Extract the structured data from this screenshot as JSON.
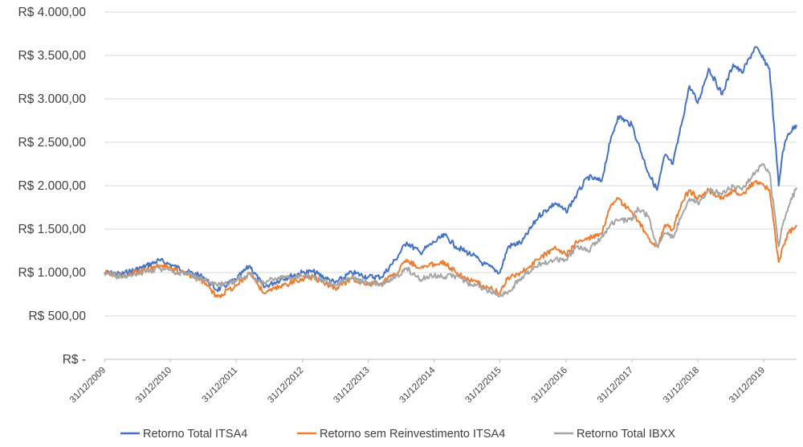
{
  "chart_data": {
    "type": "line",
    "title": "",
    "xlabel": "",
    "ylabel": "",
    "ylim": [
      0,
      4000
    ],
    "grid": true,
    "legend_position": "bottom",
    "y_ticks": [
      {
        "value": 0,
        "label": "R$ -"
      },
      {
        "value": 500,
        "label": "R$ 500,00"
      },
      {
        "value": 1000,
        "label": "R$ 1.000,00"
      },
      {
        "value": 1500,
        "label": "R$ 1.500,00"
      },
      {
        "value": 2000,
        "label": "R$ 2.000,00"
      },
      {
        "value": 2500,
        "label": "R$ 2.500,00"
      },
      {
        "value": 3000,
        "label": "R$ 3.000,00"
      },
      {
        "value": 3500,
        "label": "R$ 3.500,00"
      },
      {
        "value": 4000,
        "label": "R$ 4.000,00"
      }
    ],
    "x_range": [
      "2009-12-31",
      "2020-06-30"
    ],
    "x_ticks": [
      {
        "date": "2009-12-31",
        "label": "31/12/2009"
      },
      {
        "date": "2010-12-31",
        "label": "31/12/2010"
      },
      {
        "date": "2011-12-31",
        "label": "31/12/2011"
      },
      {
        "date": "2012-12-31",
        "label": "31/12/2012"
      },
      {
        "date": "2013-12-31",
        "label": "31/12/2013"
      },
      {
        "date": "2014-12-31",
        "label": "31/12/2014"
      },
      {
        "date": "2015-12-31",
        "label": "31/12/2015"
      },
      {
        "date": "2016-12-31",
        "label": "31/12/2016"
      },
      {
        "date": "2017-12-31",
        "label": "31/12/2017"
      },
      {
        "date": "2018-12-31",
        "label": "31/12/2018"
      },
      {
        "date": "2019-12-31",
        "label": "31/12/2019"
      }
    ],
    "series": [
      {
        "name": "Retorno Total ITSA4",
        "color": "#4472c4",
        "points": [
          [
            "2009-12-31",
            1000
          ],
          [
            "2010-04-01",
            980
          ],
          [
            "2010-08-01",
            1060
          ],
          [
            "2010-11-01",
            1140
          ],
          [
            "2011-01-15",
            1080
          ],
          [
            "2011-04-01",
            1010
          ],
          [
            "2011-07-01",
            950
          ],
          [
            "2011-09-15",
            800
          ],
          [
            "2011-12-31",
            920
          ],
          [
            "2012-03-15",
            1080
          ],
          [
            "2012-06-01",
            830
          ],
          [
            "2012-09-01",
            920
          ],
          [
            "2012-12-31",
            1000
          ],
          [
            "2013-03-01",
            1010
          ],
          [
            "2013-07-01",
            880
          ],
          [
            "2013-10-01",
            1000
          ],
          [
            "2013-12-31",
            950
          ],
          [
            "2014-03-15",
            950
          ],
          [
            "2014-06-01",
            1150
          ],
          [
            "2014-08-01",
            1350
          ],
          [
            "2014-10-15",
            1230
          ],
          [
            "2014-12-31",
            1350
          ],
          [
            "2015-03-01",
            1430
          ],
          [
            "2015-05-01",
            1300
          ],
          [
            "2015-08-01",
            1200
          ],
          [
            "2015-10-01",
            1100
          ],
          [
            "2015-12-31",
            1000
          ],
          [
            "2016-02-15",
            1300
          ],
          [
            "2016-05-01",
            1350
          ],
          [
            "2016-08-01",
            1650
          ],
          [
            "2016-11-01",
            1800
          ],
          [
            "2016-12-31",
            1700
          ],
          [
            "2017-03-01",
            1900
          ],
          [
            "2017-05-01",
            2100
          ],
          [
            "2017-07-15",
            2050
          ],
          [
            "2017-09-01",
            2500
          ],
          [
            "2017-10-15",
            2800
          ],
          [
            "2017-12-31",
            2700
          ],
          [
            "2018-02-01",
            2500
          ],
          [
            "2018-04-01",
            2150
          ],
          [
            "2018-05-20",
            1950
          ],
          [
            "2018-07-01",
            2350
          ],
          [
            "2018-08-15",
            2250
          ],
          [
            "2018-10-01",
            2700
          ],
          [
            "2018-11-15",
            3150
          ],
          [
            "2018-12-31",
            2950
          ],
          [
            "2019-03-01",
            3350
          ],
          [
            "2019-05-15",
            3050
          ],
          [
            "2019-07-15",
            3400
          ],
          [
            "2019-09-01",
            3300
          ],
          [
            "2019-11-15",
            3600
          ],
          [
            "2019-12-31",
            3450
          ],
          [
            "2020-02-01",
            3350
          ],
          [
            "2020-03-23",
            2000
          ],
          [
            "2020-04-15",
            2400
          ],
          [
            "2020-05-15",
            2600
          ],
          [
            "2020-06-30",
            2700
          ]
        ]
      },
      {
        "name": "Retorno sem Reinvestimento ITSA4",
        "color": "#ed7d31",
        "points": [
          [
            "2009-12-31",
            1000
          ],
          [
            "2010-04-01",
            960
          ],
          [
            "2010-08-01",
            1020
          ],
          [
            "2010-11-01",
            1080
          ],
          [
            "2011-01-15",
            1040
          ],
          [
            "2011-04-01",
            980
          ],
          [
            "2011-07-01",
            900
          ],
          [
            "2011-09-15",
            720
          ],
          [
            "2011-12-31",
            850
          ],
          [
            "2012-03-15",
            1000
          ],
          [
            "2012-06-01",
            760
          ],
          [
            "2012-09-01",
            840
          ],
          [
            "2012-12-31",
            930
          ],
          [
            "2013-03-01",
            950
          ],
          [
            "2013-07-01",
            820
          ],
          [
            "2013-10-01",
            930
          ],
          [
            "2013-12-31",
            860
          ],
          [
            "2014-03-15",
            880
          ],
          [
            "2014-06-01",
            980
          ],
          [
            "2014-08-01",
            1150
          ],
          [
            "2014-10-15",
            1050
          ],
          [
            "2014-12-31",
            1100
          ],
          [
            "2015-03-01",
            1120
          ],
          [
            "2015-05-01",
            1000
          ],
          [
            "2015-08-01",
            900
          ],
          [
            "2015-10-01",
            850
          ],
          [
            "2015-12-31",
            760
          ],
          [
            "2016-02-15",
            950
          ],
          [
            "2016-05-01",
            1000
          ],
          [
            "2016-08-01",
            1150
          ],
          [
            "2016-11-01",
            1300
          ],
          [
            "2016-12-31",
            1200
          ],
          [
            "2017-03-01",
            1350
          ],
          [
            "2017-05-01",
            1400
          ],
          [
            "2017-07-15",
            1450
          ],
          [
            "2017-09-01",
            1750
          ],
          [
            "2017-10-15",
            1850
          ],
          [
            "2017-12-31",
            1700
          ],
          [
            "2018-02-01",
            1600
          ],
          [
            "2018-04-01",
            1400
          ],
          [
            "2018-05-20",
            1300
          ],
          [
            "2018-07-01",
            1550
          ],
          [
            "2018-08-15",
            1500
          ],
          [
            "2018-10-01",
            1800
          ],
          [
            "2018-11-15",
            1950
          ],
          [
            "2018-12-31",
            1850
          ],
          [
            "2019-03-01",
            1950
          ],
          [
            "2019-05-15",
            1850
          ],
          [
            "2019-07-15",
            1950
          ],
          [
            "2019-09-01",
            1900
          ],
          [
            "2019-11-15",
            2050
          ],
          [
            "2019-12-31",
            2000
          ],
          [
            "2020-02-01",
            1950
          ],
          [
            "2020-03-23",
            1120
          ],
          [
            "2020-04-15",
            1300
          ],
          [
            "2020-05-15",
            1450
          ],
          [
            "2020-06-30",
            1550
          ]
        ]
      },
      {
        "name": "Retorno Total IBXX",
        "color": "#a5a5a5",
        "points": [
          [
            "2009-12-31",
            1000
          ],
          [
            "2010-04-01",
            950
          ],
          [
            "2010-08-01",
            1000
          ],
          [
            "2010-11-01",
            1050
          ],
          [
            "2011-01-15",
            1000
          ],
          [
            "2011-04-01",
            990
          ],
          [
            "2011-07-01",
            920
          ],
          [
            "2011-09-15",
            850
          ],
          [
            "2011-12-31",
            900
          ],
          [
            "2012-03-15",
            980
          ],
          [
            "2012-06-01",
            880
          ],
          [
            "2012-09-01",
            950
          ],
          [
            "2012-12-31",
            960
          ],
          [
            "2013-03-01",
            950
          ],
          [
            "2013-07-01",
            860
          ],
          [
            "2013-10-01",
            940
          ],
          [
            "2013-12-31",
            880
          ],
          [
            "2014-03-15",
            860
          ],
          [
            "2014-06-01",
            950
          ],
          [
            "2014-08-01",
            1050
          ],
          [
            "2014-10-15",
            920
          ],
          [
            "2014-12-31",
            960
          ],
          [
            "2015-03-01",
            950
          ],
          [
            "2015-05-01",
            960
          ],
          [
            "2015-08-01",
            850
          ],
          [
            "2015-10-01",
            820
          ],
          [
            "2015-12-31",
            730
          ],
          [
            "2016-02-15",
            780
          ],
          [
            "2016-05-01",
            950
          ],
          [
            "2016-08-01",
            1100
          ],
          [
            "2016-11-01",
            1150
          ],
          [
            "2016-12-31",
            1150
          ],
          [
            "2017-03-01",
            1300
          ],
          [
            "2017-05-01",
            1250
          ],
          [
            "2017-07-15",
            1400
          ],
          [
            "2017-09-01",
            1550
          ],
          [
            "2017-10-15",
            1600
          ],
          [
            "2017-12-31",
            1600
          ],
          [
            "2018-02-01",
            1750
          ],
          [
            "2018-04-01",
            1650
          ],
          [
            "2018-05-20",
            1300
          ],
          [
            "2018-07-01",
            1450
          ],
          [
            "2018-08-15",
            1400
          ],
          [
            "2018-10-01",
            1650
          ],
          [
            "2018-11-15",
            1850
          ],
          [
            "2018-12-31",
            1800
          ],
          [
            "2019-03-01",
            1950
          ],
          [
            "2019-05-15",
            1900
          ],
          [
            "2019-07-15",
            2000
          ],
          [
            "2019-09-01",
            1950
          ],
          [
            "2019-11-15",
            2150
          ],
          [
            "2019-12-31",
            2250
          ],
          [
            "2020-02-01",
            2150
          ],
          [
            "2020-03-23",
            1300
          ],
          [
            "2020-04-15",
            1550
          ],
          [
            "2020-05-15",
            1750
          ],
          [
            "2020-06-30",
            1980
          ]
        ]
      }
    ]
  }
}
